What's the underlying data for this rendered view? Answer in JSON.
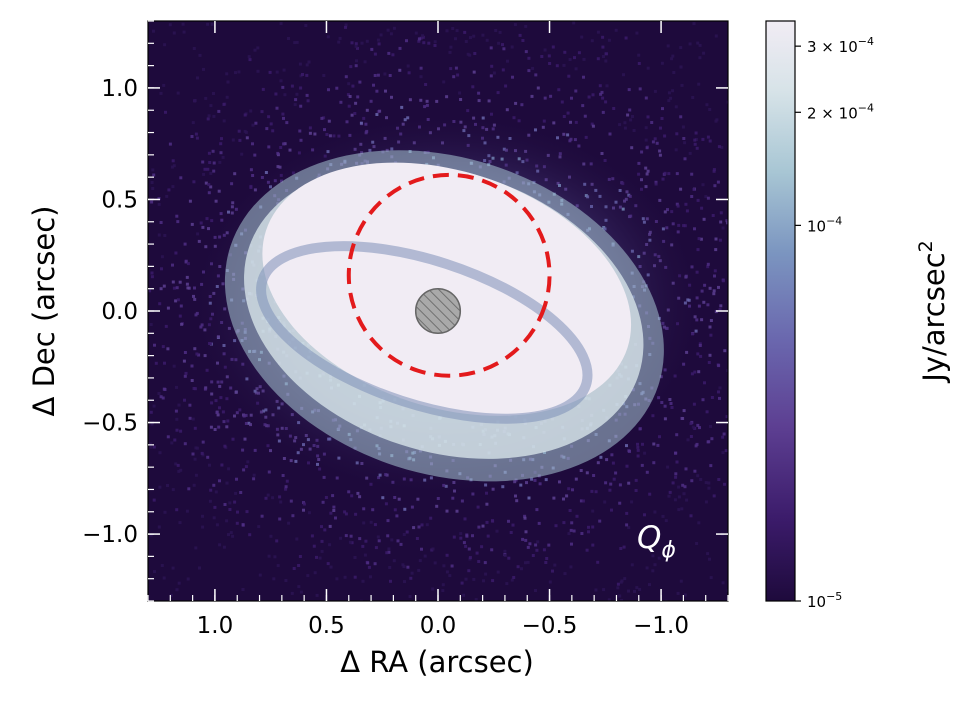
{
  "chart_data": {
    "type": "heatmap",
    "title": "",
    "xlabel": "Δ RA (arcsec)",
    "ylabel": "Δ Dec (arcsec)",
    "xlim": [
      1.3,
      -1.3
    ],
    "ylim": [
      -1.3,
      1.3
    ],
    "x_ticks": [
      1.0,
      0.5,
      0.0,
      -0.5,
      -1.0
    ],
    "y_ticks": [
      1.0,
      0.5,
      0.0,
      -0.5,
      -1.0
    ],
    "x_tick_labels": [
      "1.0",
      "0.5",
      "0.0",
      "−0.5",
      "−1.0"
    ],
    "y_tick_labels": [
      "1.0",
      "0.5",
      "0.0",
      "−0.5",
      "−1.0"
    ],
    "panel_label": "Q_ϕ",
    "panel_label_main": "Q",
    "panel_label_sub": "ϕ",
    "colorbar": {
      "label": "Jy/arcsec",
      "label_sup": "2",
      "scale": "log",
      "range": [
        1e-05,
        0.00035
      ],
      "ticks": [
        {
          "value": 1e-05,
          "mantissa": "",
          "exponent": "−5"
        },
        {
          "value": 0.0001,
          "mantissa": "",
          "exponent": "−4"
        },
        {
          "value": 0.0002,
          "mantissa": "2 × ",
          "exponent": "−4"
        },
        {
          "value": 0.0003,
          "mantissa": "3 × ",
          "exponent": "−4"
        }
      ],
      "colormap": [
        "#1e0a3c",
        "#3b1b6a",
        "#5d3f92",
        "#6a67ae",
        "#7b95c0",
        "#a8c6d4",
        "#d7e3e8",
        "#f1ecf4"
      ]
    },
    "features": {
      "ellipse": {
        "center": [
          -0.05,
          0.16
        ],
        "semi_major": 0.8,
        "semi_minor": 0.45,
        "position_angle_deg": 18,
        "color": "#e31a1c",
        "style": "dashed"
      },
      "coronagraph_mask": {
        "center": [
          0.0,
          0.0
        ],
        "radius": 0.1,
        "color": "#a9a9a9",
        "hatch": "diagonal"
      }
    },
    "grid": false,
    "colors": {
      "background": "#1e0a3c",
      "disk_core": "#f1ecf4"
    }
  }
}
